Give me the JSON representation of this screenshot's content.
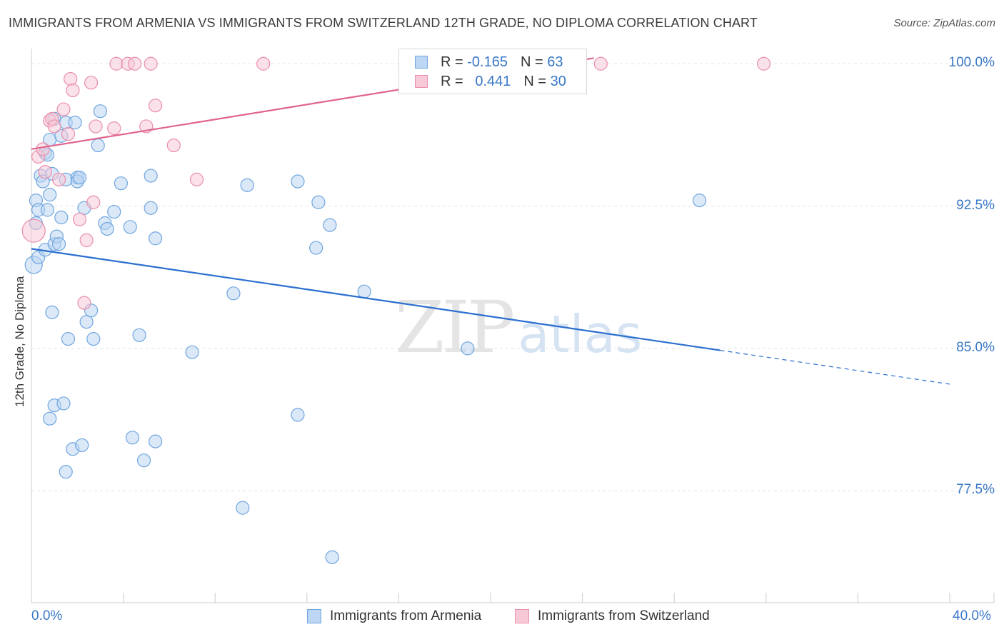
{
  "header": {
    "title": "IMMIGRANTS FROM ARMENIA VS IMMIGRANTS FROM SWITZERLAND 12TH GRADE, NO DIPLOMA CORRELATION CHART",
    "source": "Source: ZipAtlas.com"
  },
  "watermark": {
    "zip": "ZIP",
    "atlas": "atlas"
  },
  "legend_stats": {
    "armenia": {
      "r_label": "R =",
      "r_value": "-0.165",
      "n_label": "N =",
      "n_value": "63"
    },
    "switzerland": {
      "r_label": "R =",
      "r_value": "0.441",
      "n_label": "N =",
      "n_value": "30"
    }
  },
  "colors": {
    "armenia": "#6fa6df",
    "armenia_fill": "#bcd6f3",
    "armenia_line": "#2a6fcf",
    "switzerland": "#e98fac",
    "switzerland_fill": "#f7c9d7",
    "switzerland_line": "#e0648e",
    "tick_text": "#3a78c9"
  },
  "chart_data": {
    "type": "scatter",
    "title": "IMMIGRANTS FROM ARMENIA VS IMMIGRANTS FROM SWITZERLAND 12TH GRADE, NO DIPLOMA CORRELATION CHART",
    "xlabel": "",
    "ylabel": "12th Grade, No Diploma",
    "xlim": [
      0,
      40
    ],
    "ylim": [
      71.6,
      100.8
    ],
    "x_tick_labels": {
      "min": "0.0%",
      "max": "40.0%"
    },
    "y_ticks": [
      {
        "value": 100.0,
        "label": "100.0%"
      },
      {
        "value": 92.5,
        "label": "92.5%"
      },
      {
        "value": 85.0,
        "label": "85.0%"
      },
      {
        "value": 77.5,
        "label": "77.5%"
      }
    ],
    "grid": true,
    "legend": "bottom-center",
    "series": [
      {
        "name": "Immigrants from Armenia",
        "color_key": "armenia",
        "trend": {
          "x0": 0,
          "y0": 90.25,
          "x1": 30,
          "y1": 84.9,
          "dashed_to_x": 40
        },
        "points": [
          [
            0.1,
            89.4
          ],
          [
            0.2,
            92.8
          ],
          [
            0.2,
            91.6
          ],
          [
            0.3,
            92.3
          ],
          [
            0.3,
            89.8
          ],
          [
            0.4,
            94.1
          ],
          [
            0.5,
            93.8
          ],
          [
            0.6,
            95.3
          ],
          [
            0.6,
            90.2
          ],
          [
            0.7,
            95.2
          ],
          [
            0.7,
            92.3
          ],
          [
            0.8,
            93.1
          ],
          [
            0.8,
            96.0
          ],
          [
            0.9,
            94.2
          ],
          [
            0.9,
            86.9
          ],
          [
            1.0,
            97.1
          ],
          [
            1.0,
            90.5
          ],
          [
            1.1,
            90.9
          ],
          [
            1.2,
            90.5
          ],
          [
            1.3,
            96.2
          ],
          [
            1.3,
            91.9
          ],
          [
            1.5,
            96.9
          ],
          [
            1.5,
            93.9
          ],
          [
            1.6,
            85.5
          ],
          [
            1.9,
            96.9
          ],
          [
            2.0,
            94.0
          ],
          [
            2.0,
            93.8
          ],
          [
            2.1,
            94.0
          ],
          [
            2.3,
            92.4
          ],
          [
            2.4,
            86.4
          ],
          [
            2.6,
            87.0
          ],
          [
            2.7,
            85.5
          ],
          [
            2.9,
            95.7
          ],
          [
            3.0,
            97.5
          ],
          [
            3.2,
            91.6
          ],
          [
            3.3,
            91.3
          ],
          [
            3.6,
            92.2
          ],
          [
            3.9,
            93.7
          ],
          [
            4.3,
            91.4
          ],
          [
            4.7,
            85.7
          ],
          [
            5.2,
            92.4
          ],
          [
            5.4,
            90.8
          ],
          [
            5.2,
            94.1
          ],
          [
            7.0,
            84.8
          ],
          [
            8.8,
            87.9
          ],
          [
            9.2,
            76.6
          ],
          [
            9.4,
            93.6
          ],
          [
            11.6,
            93.8
          ],
          [
            11.6,
            81.5
          ],
          [
            12.4,
            90.3
          ],
          [
            12.5,
            92.7
          ],
          [
            13.0,
            91.5
          ],
          [
            14.5,
            88.0
          ],
          [
            19.0,
            85.0
          ],
          [
            29.1,
            92.8
          ],
          [
            13.1,
            74.0
          ],
          [
            0.8,
            81.3
          ],
          [
            1.0,
            82.0
          ],
          [
            1.4,
            82.1
          ],
          [
            1.8,
            79.7
          ],
          [
            2.2,
            79.9
          ],
          [
            4.4,
            80.3
          ],
          [
            5.4,
            80.1
          ]
        ],
        "extra_points": [
          [
            1.5,
            78.5
          ],
          [
            4.9,
            79.1
          ]
        ]
      },
      {
        "name": "Immigrants from Switzerland",
        "color_key": "switzerland",
        "trend": {
          "x0": 0,
          "y0": 95.5,
          "x1": 24.5,
          "y1": 100.3
        },
        "points": [
          [
            0.1,
            91.2
          ],
          [
            0.3,
            95.1
          ],
          [
            0.5,
            95.5
          ],
          [
            0.6,
            94.3
          ],
          [
            0.8,
            97.0
          ],
          [
            0.9,
            97.1
          ],
          [
            1.0,
            96.7
          ],
          [
            1.2,
            93.9
          ],
          [
            1.4,
            97.6
          ],
          [
            1.6,
            96.3
          ],
          [
            1.7,
            99.2
          ],
          [
            1.8,
            98.6
          ],
          [
            2.1,
            91.8
          ],
          [
            2.3,
            87.4
          ],
          [
            2.4,
            90.7
          ],
          [
            2.6,
            99.0
          ],
          [
            2.7,
            92.7
          ],
          [
            2.8,
            96.7
          ],
          [
            3.6,
            96.6
          ],
          [
            3.7,
            100.0
          ],
          [
            4.2,
            100.0
          ],
          [
            4.5,
            100.0
          ],
          [
            5.0,
            96.7
          ],
          [
            5.2,
            100.0
          ],
          [
            5.4,
            97.8
          ],
          [
            6.2,
            95.7
          ],
          [
            7.2,
            93.9
          ],
          [
            10.1,
            100.0
          ],
          [
            24.8,
            100.0
          ],
          [
            31.9,
            100.0
          ]
        ]
      }
    ]
  },
  "bottom_legend": {
    "armenia_label": "Immigrants from Armenia",
    "switzerland_label": "Immigrants from Switzerland"
  }
}
